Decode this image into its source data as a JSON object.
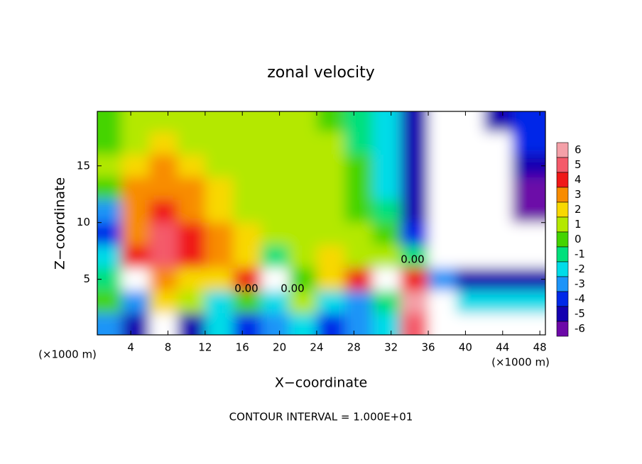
{
  "chart_data": {
    "type": "contour",
    "title": "zonal velocity",
    "xlabel": "X−coordinate",
    "ylabel": "Z−coordinate",
    "x_unit": "(×1000 m)",
    "y_unit": "(×1000 m)",
    "footer": "CONTOUR INTERVAL = 1.000E+01",
    "contour_labels": [
      "0.00",
      "0.00",
      "0.00"
    ],
    "xlim": [
      0.4,
      48.6
    ],
    "ylim": [
      0.1,
      19.8
    ],
    "xticks": [
      4,
      8,
      12,
      16,
      20,
      24,
      28,
      32,
      36,
      40,
      44,
      48
    ],
    "yticks": [
      5,
      10,
      15
    ],
    "x": [
      1.5,
      4.5,
      7.5,
      10.5,
      13.5,
      16.5,
      19.5,
      22.5,
      25.5,
      28.5,
      31.5,
      34.5,
      37.5,
      40.5,
      43.5,
      46.5
    ],
    "y": [
      19,
      17,
      15,
      13,
      11,
      9,
      7,
      5,
      3,
      1
    ],
    "z": [
      [
        0,
        0.5,
        1,
        1,
        0.5,
        0.5,
        0.5,
        0.5,
        0,
        -1,
        -2,
        -5,
        -8,
        -8,
        -5,
        -4
      ],
      [
        0,
        1,
        1.5,
        1,
        0.5,
        0.5,
        0.5,
        1,
        0.5,
        -1,
        -2,
        -5,
        -8,
        -8,
        -8,
        -4
      ],
      [
        1,
        2,
        2.5,
        2,
        1,
        1,
        1,
        1,
        0.5,
        -0.5,
        -2,
        -5,
        -8,
        -8,
        -8,
        -5
      ],
      [
        0,
        3,
        3,
        2.5,
        1.5,
        1,
        1,
        1,
        0.5,
        0,
        -2,
        -5,
        -8,
        -8,
        -8,
        -6
      ],
      [
        -3,
        3,
        3.5,
        3,
        2,
        1,
        1,
        0.5,
        0.5,
        0,
        -1.5,
        -5,
        -8,
        -8,
        -8,
        -6
      ],
      [
        -4,
        3,
        4.5,
        3.5,
        2.5,
        1.5,
        1,
        0.5,
        0.5,
        0.5,
        0,
        -4,
        -8,
        -8,
        -8,
        -8
      ],
      [
        -2,
        4,
        5,
        4,
        3,
        2,
        -1,
        1,
        2,
        0.5,
        1,
        -1,
        -8,
        -8,
        -8,
        -8
      ],
      [
        -1,
        8,
        3,
        2,
        2,
        4,
        -8,
        0,
        2,
        4,
        8,
        4,
        -3,
        -5,
        -5,
        -5
      ],
      [
        0,
        -3,
        2,
        1,
        -2,
        0,
        -2,
        1,
        -2,
        -3,
        -1,
        6,
        8,
        -2,
        -2,
        -2
      ],
      [
        -3,
        -5,
        -8,
        -5,
        -2,
        -4,
        -3,
        -2,
        -4,
        -3,
        -2,
        5,
        8,
        -8,
        -8,
        -8
      ]
    ],
    "colorbar": {
      "levels": [
        6,
        5,
        4,
        3,
        2,
        1,
        0,
        -1,
        -2,
        -3,
        -4,
        -5,
        -6
      ],
      "colors": [
        "#f4a0a8",
        "#f45a6a",
        "#f01818",
        "#f88c00",
        "#f8d800",
        "#b4e800",
        "#44d400",
        "#00e07c",
        "#00dce8",
        "#1c94f8",
        "#0028e8",
        "#1400b0",
        "#6c08a8"
      ]
    }
  }
}
